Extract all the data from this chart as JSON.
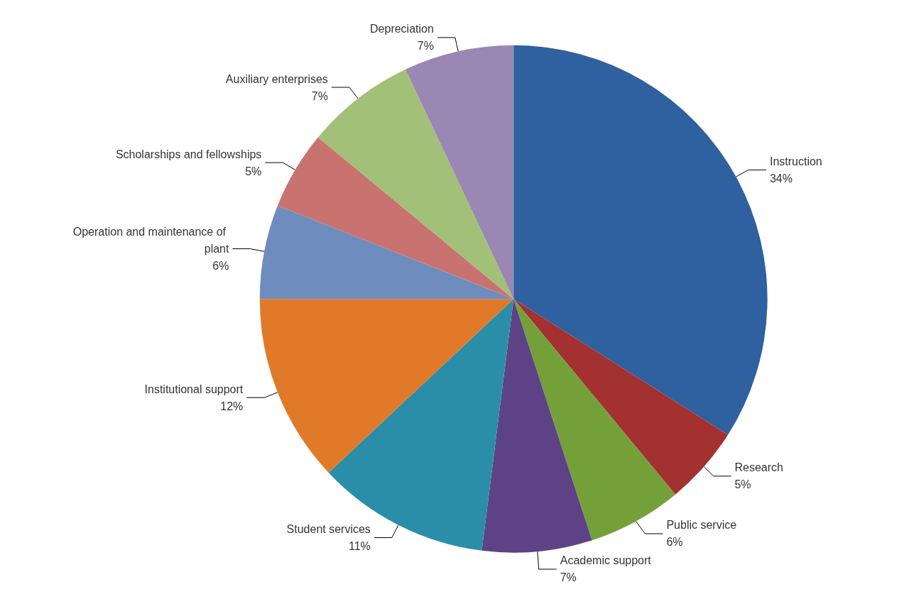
{
  "chart_data": {
    "type": "pie",
    "categories": [
      "Instruction",
      "Research",
      "Public service",
      "Academic support",
      "Student services",
      "Institutional support",
      "Operation and maintenance of plant",
      "Scholarships and fellowships",
      "Auxiliary enterprises",
      "Depreciation"
    ],
    "values": [
      34,
      5,
      6,
      7,
      11,
      12,
      6,
      5,
      7,
      7
    ],
    "value_labels": [
      "34%",
      "5%",
      "6%",
      "7%",
      "11%",
      "12%",
      "6%",
      "5%",
      "7%",
      "7%"
    ],
    "colors": [
      "#2f609f",
      "#a33130",
      "#74a03a",
      "#5d4385",
      "#2a8ea8",
      "#e07a28",
      "#6f8cbf",
      "#c97371",
      "#a2c078",
      "#9a87b4"
    ],
    "legend": false
  }
}
